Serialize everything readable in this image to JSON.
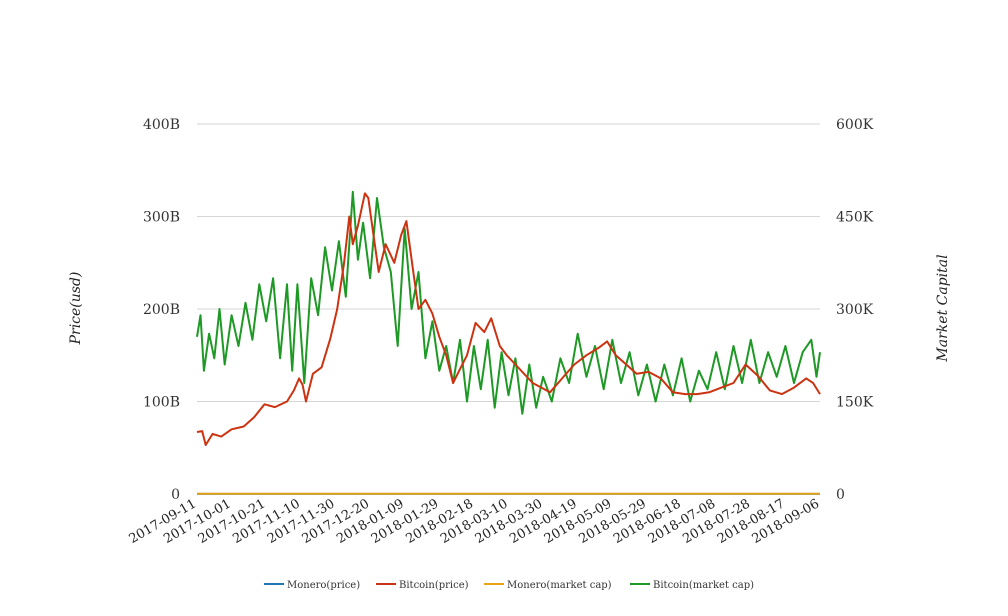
{
  "chart_data": {
    "type": "line",
    "title": "",
    "ylabel_left": "Price(usd)",
    "ylabel_right": "Market Capital",
    "left_axis": {
      "ticks": [
        0,
        100,
        200,
        300,
        400
      ],
      "tick_labels": [
        "0",
        "100B",
        "200B",
        "300B",
        "400B"
      ],
      "ylim": [
        0,
        400
      ]
    },
    "right_axis": {
      "ticks": [
        0,
        150,
        300,
        450,
        600
      ],
      "tick_labels": [
        "0",
        "150K",
        "300K",
        "450K",
        "600K"
      ],
      "ylim": [
        0,
        600
      ]
    },
    "x_tick_labels": [
      "2017-09-11",
      "2017-10-01",
      "2017-10-21",
      "2017-11-10",
      "2017-11-30",
      "2017-12-20",
      "2018-01-09",
      "2018-01-29",
      "2018-02-18",
      "2018-03-10",
      "2018-03-30",
      "2018-04-19",
      "2018-05-09",
      "2018-05-29",
      "2018-06-18",
      "2018-07-08",
      "2018-07-28",
      "2018-08-17",
      "2018-09-06"
    ],
    "x_range": [
      "2017-09-11",
      "2018-09-06"
    ],
    "grid": true,
    "legend_position": "bottom",
    "series": [
      {
        "name": "Monero(price)",
        "axis": "left",
        "color": "#1f77b4",
        "x": [
          "2017-09-11",
          "2018-09-06"
        ],
        "values": [
          0.1,
          0.1
        ]
      },
      {
        "name": "Bitcoin(price)",
        "axis": "left",
        "color": "#cc3311",
        "x": [
          "2017-09-11",
          "2017-09-14",
          "2017-09-16",
          "2017-09-20",
          "2017-09-25",
          "2017-10-01",
          "2017-10-08",
          "2017-10-14",
          "2017-10-20",
          "2017-10-26",
          "2017-11-02",
          "2017-11-06",
          "2017-11-09",
          "2017-11-11",
          "2017-11-13",
          "2017-11-17",
          "2017-11-22",
          "2017-11-27",
          "2017-12-01",
          "2017-12-05",
          "2017-12-08",
          "2017-12-10",
          "2017-12-13",
          "2017-12-17",
          "2017-12-19",
          "2017-12-22",
          "2017-12-25",
          "2017-12-29",
          "2018-01-03",
          "2018-01-07",
          "2018-01-10",
          "2018-01-14",
          "2018-01-17",
          "2018-01-21",
          "2018-01-25",
          "2018-01-29",
          "2018-02-02",
          "2018-02-06",
          "2018-02-10",
          "2018-02-14",
          "2018-02-19",
          "2018-02-24",
          "2018-02-28",
          "2018-03-05",
          "2018-03-09",
          "2018-03-14",
          "2018-03-19",
          "2018-03-24",
          "2018-03-29",
          "2018-04-03",
          "2018-04-10",
          "2018-04-17",
          "2018-04-24",
          "2018-05-01",
          "2018-05-06",
          "2018-05-11",
          "2018-05-17",
          "2018-05-23",
          "2018-05-30",
          "2018-06-06",
          "2018-06-13",
          "2018-06-20",
          "2018-06-27",
          "2018-07-04",
          "2018-07-11",
          "2018-07-18",
          "2018-07-25",
          "2018-08-01",
          "2018-08-08",
          "2018-08-15",
          "2018-08-22",
          "2018-08-29",
          "2018-09-02",
          "2018-09-06"
        ],
        "values": [
          67,
          68,
          53,
          65,
          62,
          70,
          73,
          83,
          97,
          94,
          100,
          112,
          125,
          118,
          100,
          130,
          137,
          168,
          200,
          250,
          300,
          270,
          290,
          325,
          320,
          280,
          240,
          270,
          250,
          280,
          295,
          240,
          200,
          210,
          195,
          170,
          150,
          120,
          135,
          150,
          185,
          175,
          190,
          160,
          150,
          140,
          130,
          120,
          115,
          110,
          125,
          140,
          150,
          158,
          165,
          150,
          140,
          130,
          132,
          125,
          110,
          108,
          108,
          110,
          115,
          120,
          140,
          128,
          112,
          108,
          115,
          125,
          120,
          108
        ]
      },
      {
        "name": "Monero(market cap)",
        "axis": "right",
        "color": "#e8a317",
        "x": [
          "2017-09-11",
          "2018-09-06"
        ],
        "values": [
          0.5,
          0.5
        ]
      },
      {
        "name": "Bitcoin(market cap)",
        "axis": "right",
        "color": "#1e9925",
        "x": [
          "2017-09-11",
          "2017-09-13",
          "2017-09-15",
          "2017-09-18",
          "2017-09-21",
          "2017-09-24",
          "2017-09-27",
          "2017-10-01",
          "2017-10-05",
          "2017-10-09",
          "2017-10-13",
          "2017-10-17",
          "2017-10-21",
          "2017-10-25",
          "2017-10-29",
          "2017-11-02",
          "2017-11-05",
          "2017-11-08",
          "2017-11-12",
          "2017-11-16",
          "2017-11-20",
          "2017-11-24",
          "2017-11-28",
          "2017-12-02",
          "2017-12-06",
          "2017-12-10",
          "2017-12-13",
          "2017-12-16",
          "2017-12-20",
          "2017-12-24",
          "2017-12-28",
          "2018-01-01",
          "2018-01-05",
          "2018-01-09",
          "2018-01-13",
          "2018-01-17",
          "2018-01-21",
          "2018-01-25",
          "2018-01-29",
          "2018-02-02",
          "2018-02-06",
          "2018-02-10",
          "2018-02-14",
          "2018-02-18",
          "2018-02-22",
          "2018-02-26",
          "2018-03-02",
          "2018-03-06",
          "2018-03-10",
          "2018-03-14",
          "2018-03-18",
          "2018-03-22",
          "2018-03-26",
          "2018-03-30",
          "2018-04-04",
          "2018-04-09",
          "2018-04-14",
          "2018-04-19",
          "2018-04-24",
          "2018-04-29",
          "2018-05-04",
          "2018-05-09",
          "2018-05-14",
          "2018-05-19",
          "2018-05-24",
          "2018-05-29",
          "2018-06-03",
          "2018-06-08",
          "2018-06-13",
          "2018-06-18",
          "2018-06-23",
          "2018-06-28",
          "2018-07-03",
          "2018-07-08",
          "2018-07-13",
          "2018-07-18",
          "2018-07-23",
          "2018-07-28",
          "2018-08-02",
          "2018-08-07",
          "2018-08-12",
          "2018-08-17",
          "2018-08-22",
          "2018-08-27",
          "2018-09-01",
          "2018-09-04",
          "2018-09-06"
        ],
        "values": [
          255,
          290,
          200,
          260,
          220,
          300,
          210,
          290,
          240,
          310,
          250,
          340,
          280,
          350,
          220,
          340,
          200,
          340,
          180,
          350,
          290,
          400,
          330,
          410,
          320,
          490,
          380,
          440,
          350,
          480,
          400,
          360,
          240,
          430,
          300,
          360,
          220,
          280,
          200,
          240,
          180,
          250,
          150,
          240,
          170,
          250,
          140,
          230,
          160,
          220,
          130,
          210,
          140,
          190,
          150,
          220,
          180,
          260,
          190,
          240,
          170,
          250,
          180,
          230,
          160,
          210,
          150,
          210,
          160,
          220,
          150,
          200,
          170,
          230,
          170,
          240,
          180,
          250,
          180,
          230,
          190,
          240,
          180,
          230,
          250,
          190,
          230
        ]
      }
    ]
  }
}
